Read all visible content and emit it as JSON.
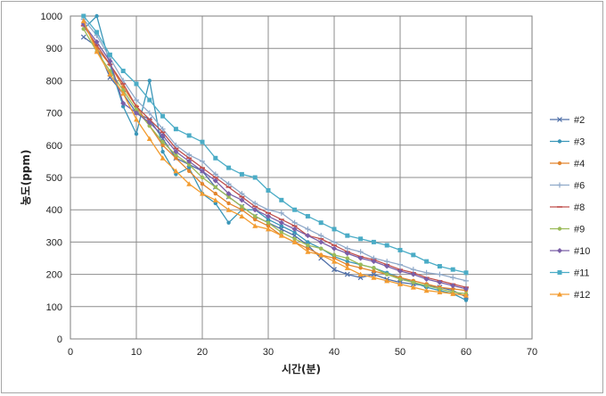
{
  "chart_data": {
    "type": "line",
    "xlabel": "시간(분)",
    "ylabel": "농도(ppm)",
    "xlim": [
      0,
      70
    ],
    "ylim": [
      0,
      1000
    ],
    "x_ticks": [
      0,
      10,
      20,
      30,
      40,
      50,
      60,
      70
    ],
    "y_ticks": [
      0,
      100,
      200,
      300,
      400,
      500,
      600,
      700,
      800,
      900,
      1000
    ],
    "grid": true,
    "legend_position": "right",
    "x": [
      2,
      4,
      6,
      8,
      10,
      12,
      14,
      16,
      18,
      20,
      22,
      24,
      26,
      28,
      30,
      32,
      34,
      36,
      38,
      40,
      42,
      44,
      46,
      48,
      50,
      52,
      54,
      56,
      58,
      60
    ],
    "series": [
      {
        "name": "#2",
        "color": "#4f6fa8",
        "marker": "x",
        "values": [
          935,
          905,
          810,
          760,
          700,
          680,
          620,
          560,
          540,
          520,
          470,
          440,
          410,
          380,
          360,
          340,
          320,
          290,
          250,
          215,
          200,
          190,
          200,
          185,
          175,
          170,
          165,
          160,
          150,
          130
        ]
      },
      {
        "name": "#3",
        "color": "#3a96b8",
        "marker": "dot",
        "values": [
          960,
          1000,
          850,
          720,
          635,
          800,
          580,
          510,
          530,
          450,
          420,
          360,
          400,
          400,
          370,
          350,
          330,
          300,
          280,
          255,
          240,
          230,
          220,
          205,
          190,
          175,
          160,
          150,
          140,
          120
        ]
      },
      {
        "name": "#4",
        "color": "#e2852e",
        "marker": "dot",
        "values": [
          980,
          900,
          850,
          780,
          720,
          660,
          600,
          560,
          520,
          480,
          450,
          420,
          400,
          370,
          350,
          320,
          300,
          280,
          260,
          250,
          230,
          220,
          210,
          200,
          190,
          180,
          170,
          160,
          155,
          150
        ]
      },
      {
        "name": "#6",
        "color": "#8fa9c9",
        "marker": "plus",
        "values": [
          990,
          940,
          870,
          800,
          740,
          700,
          650,
          600,
          570,
          550,
          510,
          480,
          450,
          420,
          400,
          390,
          360,
          340,
          320,
          300,
          280,
          270,
          250,
          240,
          230,
          215,
          205,
          200,
          190,
          180
        ]
      },
      {
        "name": "#8",
        "color": "#c0504d",
        "marker": "dash",
        "values": [
          970,
          910,
          850,
          790,
          720,
          680,
          640,
          590,
          560,
          530,
          500,
          470,
          440,
          410,
          390,
          370,
          350,
          320,
          310,
          290,
          270,
          255,
          245,
          230,
          215,
          205,
          190,
          180,
          170,
          160
        ]
      },
      {
        "name": "#9",
        "color": "#9bbb59",
        "marker": "dot",
        "values": [
          960,
          890,
          830,
          770,
          710,
          660,
          610,
          570,
          540,
          500,
          470,
          440,
          410,
          380,
          360,
          330,
          310,
          290,
          280,
          260,
          250,
          230,
          220,
          200,
          185,
          175,
          165,
          155,
          145,
          140
        ]
      },
      {
        "name": "#10",
        "color": "#7a5fa8",
        "marker": "diamond",
        "values": [
          975,
          920,
          860,
          730,
          700,
          670,
          630,
          580,
          550,
          520,
          490,
          450,
          430,
          400,
          380,
          360,
          340,
          320,
          300,
          280,
          265,
          250,
          240,
          225,
          210,
          200,
          185,
          175,
          165,
          155
        ]
      },
      {
        "name": "#11",
        "color": "#4bacc6",
        "marker": "square",
        "values": [
          1000,
          950,
          880,
          830,
          790,
          740,
          690,
          650,
          630,
          610,
          560,
          530,
          510,
          500,
          460,
          430,
          400,
          380,
          360,
          340,
          320,
          310,
          300,
          290,
          275,
          260,
          240,
          225,
          215,
          205
        ]
      },
      {
        "name": "#12",
        "color": "#f39c30",
        "marker": "triangle",
        "values": [
          985,
          890,
          820,
          760,
          680,
          620,
          560,
          520,
          480,
          450,
          430,
          400,
          380,
          350,
          340,
          320,
          300,
          270,
          260,
          240,
          220,
          200,
          190,
          180,
          170,
          160,
          150,
          145,
          140,
          135
        ]
      }
    ]
  }
}
